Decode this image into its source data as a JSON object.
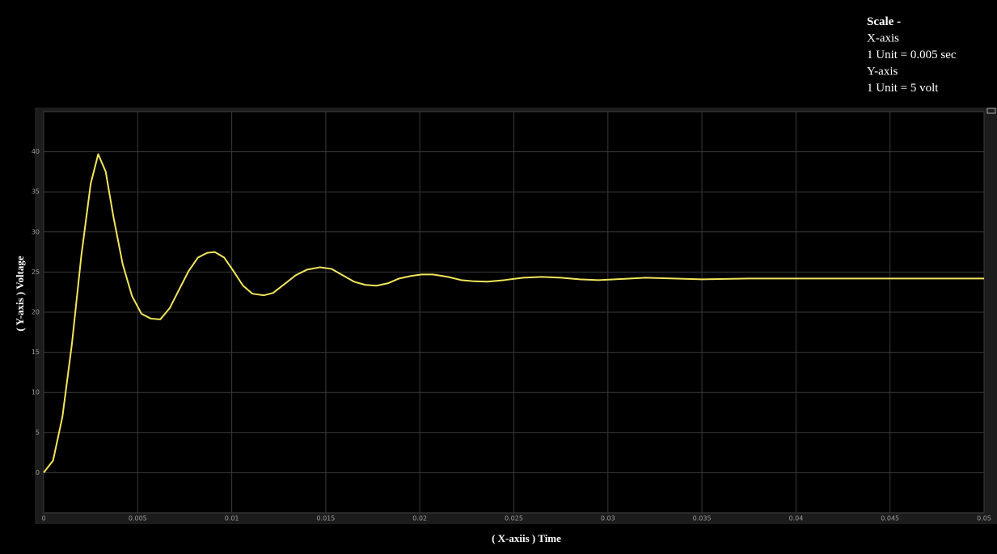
{
  "chart_data": {
    "type": "line",
    "annotations": [
      "Scale -",
      "X-axis",
      "1 Unit = 0.005 sec",
      "Y-axis",
      "1 Unit = 5 volt"
    ],
    "xlabel": "( X-axiis ) Time",
    "ylabel": "( Y-axis ) Voltage",
    "xlim": [
      0,
      0.05
    ],
    "ylim": [
      -5,
      45
    ],
    "xticks": [
      0,
      0.005,
      0.01,
      0.015,
      0.02,
      0.025,
      0.03,
      0.035,
      0.04,
      0.045,
      0.05
    ],
    "yticks": [
      0,
      5,
      10,
      15,
      20,
      25,
      30,
      35,
      40
    ],
    "grid": true,
    "series": [
      {
        "color": "#f2e65a",
        "x": [
          0,
          0.0005,
          0.001,
          0.0015,
          0.002,
          0.0025,
          0.0029,
          0.0033,
          0.0037,
          0.0042,
          0.0047,
          0.0052,
          0.0057,
          0.0062,
          0.0067,
          0.0072,
          0.0077,
          0.0082,
          0.0087,
          0.0091,
          0.0096,
          0.0101,
          0.0106,
          0.0111,
          0.0117,
          0.0122,
          0.0128,
          0.0134,
          0.014,
          0.0147,
          0.0153,
          0.0159,
          0.0165,
          0.0171,
          0.0177,
          0.0183,
          0.0189,
          0.0195,
          0.0201,
          0.0207,
          0.0215,
          0.0222,
          0.0229,
          0.0236,
          0.0245,
          0.0255,
          0.0265,
          0.0275,
          0.0285,
          0.0295,
          0.0308,
          0.032,
          0.0335,
          0.035,
          0.0375,
          0.04,
          0.045,
          0.05
        ],
        "values": [
          0,
          1.5,
          7,
          16,
          27,
          36,
          39.7,
          37.5,
          32,
          26,
          22,
          19.8,
          19.2,
          19.1,
          20.5,
          22.8,
          25.1,
          26.8,
          27.4,
          27.5,
          26.8,
          25.1,
          23.3,
          22.3,
          22.1,
          22.4,
          23.5,
          24.6,
          25.3,
          25.6,
          25.4,
          24.6,
          23.8,
          23.4,
          23.3,
          23.6,
          24.2,
          24.5,
          24.7,
          24.7,
          24.4,
          24.0,
          23.85,
          23.8,
          24.0,
          24.3,
          24.4,
          24.3,
          24.1,
          24.0,
          24.15,
          24.3,
          24.2,
          24.1,
          24.2,
          24.2,
          24.2,
          24.2
        ]
      }
    ]
  }
}
